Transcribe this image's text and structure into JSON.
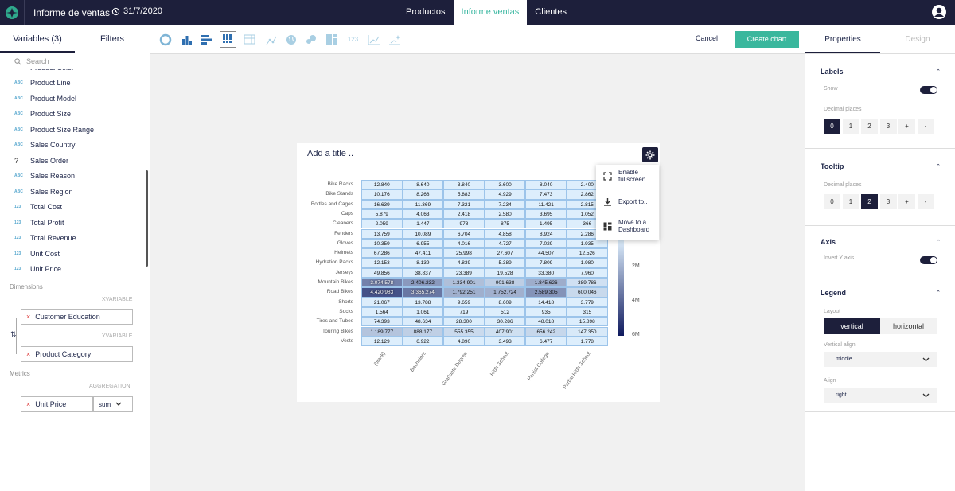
{
  "header": {
    "title": "Informe de ventas",
    "date": "31/7/2020",
    "nav": [
      "Productos",
      "Informe ventas",
      "Clientes"
    ]
  },
  "left": {
    "tabs": [
      "Variables (3)",
      "Filters"
    ],
    "search_placeholder": "Search",
    "variables": [
      {
        "type": "ABC",
        "name": "Product Color"
      },
      {
        "type": "ABC",
        "name": "Product Line"
      },
      {
        "type": "ABC",
        "name": "Product Model"
      },
      {
        "type": "ABC",
        "name": "Product Size"
      },
      {
        "type": "ABC",
        "name": "Product Size Range"
      },
      {
        "type": "ABC",
        "name": "Sales Country"
      },
      {
        "type": "?",
        "name": "Sales Order"
      },
      {
        "type": "ABC",
        "name": "Sales Reason"
      },
      {
        "type": "ABC",
        "name": "Sales Region"
      },
      {
        "type": "123",
        "name": "Total Cost"
      },
      {
        "type": "123",
        "name": "Total Profit"
      },
      {
        "type": "123",
        "name": "Total Revenue"
      },
      {
        "type": "123",
        "name": "Unit Cost"
      },
      {
        "type": "123",
        "name": "Unit Price"
      }
    ],
    "dimensions_label": "Dimensions",
    "xvariable_label": "XVARIABLE",
    "xvariable": "Customer Education",
    "yvariable_label": "YVARIABLE",
    "yvariable": "Product Category",
    "metrics_label": "Metrics",
    "aggregation_label": "AGGREGATION",
    "metric": "Unit Price",
    "aggregation": "sum"
  },
  "toolbar": {
    "cancel": "Cancel",
    "create": "Create chart"
  },
  "card": {
    "title": "Add a title .."
  },
  "menu": {
    "fullscreen": "Enable fullscreen",
    "export": "Export to..",
    "dashboard": "Move to a Dashboard"
  },
  "chart_data": {
    "type": "heatmap",
    "title": "",
    "x": [
      "(blank)",
      "Bachelors",
      "Graduate Degree",
      "High School",
      "Partial College",
      "Partial High School"
    ],
    "y": [
      "Bike Racks",
      "Bike Stands",
      "Bottles and Cages",
      "Caps",
      "Cleaners",
      "Fenders",
      "Gloves",
      "Helmets",
      "Hydration Packs",
      "Jerseys",
      "Mountain Bikes",
      "Road Bikes",
      "Shorts",
      "Socks",
      "Tires and Tubes",
      "Touring Bikes",
      "Vests"
    ],
    "values": [
      [
        "12.840",
        "8.640",
        "3.840",
        "3.600",
        "8.040",
        "2.400"
      ],
      [
        "10.176",
        "8.268",
        "5.883",
        "4.929",
        "7.473",
        "2.862"
      ],
      [
        "16.639",
        "11.369",
        "7.321",
        "7.234",
        "11.421",
        "2.815"
      ],
      [
        "5.879",
        "4.063",
        "2.418",
        "2.580",
        "3.695",
        "1.052"
      ],
      [
        "2.059",
        "1.447",
        "978",
        "875",
        "1.495",
        "366"
      ],
      [
        "13.759",
        "10.089",
        "6.704",
        "4.858",
        "8.924",
        "2.286"
      ],
      [
        "10.359",
        "6.955",
        "4.016",
        "4.727",
        "7.029",
        "1.935"
      ],
      [
        "67.286",
        "47.411",
        "25.998",
        "27.607",
        "44.507",
        "12.526"
      ],
      [
        "12.153",
        "8.139",
        "4.839",
        "5.389",
        "7.809",
        "1.980"
      ],
      [
        "49.856",
        "38.837",
        "23.389",
        "19.528",
        "33.380",
        "7.960"
      ],
      [
        "3.074.578",
        "2.406.232",
        "1.334.901",
        "901.638",
        "1.845.626",
        "389.786"
      ],
      [
        "4.420.983",
        "3.365.274",
        "1.792.251",
        "1.752.724",
        "2.589.305",
        "600.046"
      ],
      [
        "21.067",
        "13.788",
        "9.659",
        "8.609",
        "14.418",
        "3.779"
      ],
      [
        "1.564",
        "1.061",
        "719",
        "512",
        "935",
        "315"
      ],
      [
        "74.393",
        "48.634",
        "28.300",
        "30.286",
        "48.018",
        "15.898"
      ],
      [
        "1.189.777",
        "888.177",
        "555.355",
        "407.901",
        "656.242",
        "147.350"
      ],
      [
        "12.129",
        "6.922",
        "4.890",
        "3.493",
        "6.477",
        "1.778"
      ]
    ],
    "numeric": [
      [
        12840,
        8640,
        3840,
        3600,
        8040,
        2400
      ],
      [
        10176,
        8268,
        5883,
        4929,
        7473,
        2862
      ],
      [
        16639,
        11369,
        7321,
        7234,
        11421,
        2815
      ],
      [
        5879,
        4063,
        2418,
        2580,
        3695,
        1052
      ],
      [
        2059,
        1447,
        978,
        875,
        1495,
        366
      ],
      [
        13759,
        10089,
        6704,
        4858,
        8924,
        2286
      ],
      [
        10359,
        6955,
        4016,
        4727,
        7029,
        1935
      ],
      [
        67286,
        47411,
        25998,
        27607,
        44507,
        12526
      ],
      [
        12153,
        8139,
        4839,
        5389,
        7809,
        1980
      ],
      [
        49856,
        38837,
        23389,
        19528,
        33380,
        7960
      ],
      [
        3074578,
        2406232,
        1334901,
        901638,
        1845626,
        389786
      ],
      [
        4420983,
        3365274,
        1792251,
        1752724,
        2589305,
        600046
      ],
      [
        21067,
        13788,
        9659,
        8609,
        14418,
        3779
      ],
      [
        1564,
        1061,
        719,
        512,
        935,
        315
      ],
      [
        74393,
        48634,
        28300,
        30286,
        48018,
        15898
      ],
      [
        1189777,
        888177,
        555355,
        407901,
        656242,
        147350
      ],
      [
        12129,
        6922,
        4890,
        3493,
        6477,
        1778
      ]
    ],
    "legend_labels": [
      "2M",
      "4M",
      "6M"
    ],
    "colorscale": [
      "#ddeefc",
      "#0f1a5e"
    ],
    "max": 6000000
  },
  "right": {
    "tabs": [
      "Properties",
      "Design"
    ],
    "labels_title": "Labels",
    "show_label": "Show",
    "decimal_label": "Decimal places",
    "decimals": [
      "0",
      "1",
      "2",
      "3",
      "+",
      "-"
    ],
    "tooltip_title": "Tooltip",
    "axis_title": "Axis",
    "invert_label": "Invert Y axis",
    "legend_title": "Legend",
    "layout_label": "Layout",
    "layout_options": [
      "vertical",
      "horizontal"
    ],
    "valign_label": "Vertical align",
    "valign": "middle",
    "align_label": "Align",
    "align": "right"
  }
}
